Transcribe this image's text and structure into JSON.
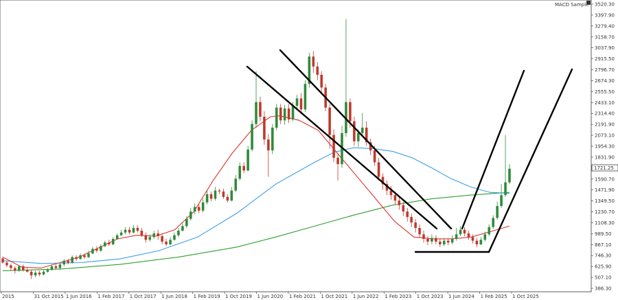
{
  "chart_data": {
    "type": "candlestick",
    "indicator_label": "MACD Sample",
    "current_price": "1721.25",
    "y_axis": {
      "range": [
        380,
        3580
      ],
      "ticks": [
        "3520.30",
        "3397.90",
        "3279.40",
        "3158.70",
        "3037.90",
        "2915.50",
        "2796.70",
        "2674.30",
        "2555.50",
        "2433.10",
        "2314.40",
        "2191.90",
        "2073.10",
        "1954.30",
        "1831.90",
        "1710.50",
        "1590.70",
        "1471.90",
        "1349.50",
        "1230.70",
        "1108.30",
        "989.50",
        "867.10",
        "746.30",
        "625.90",
        "507.10",
        "386.30"
      ]
    },
    "x_axis": {
      "labels": [
        "2015",
        "31 Oct 2015",
        "1 Jun 2016",
        "1 Feb 2017",
        "1 Oct 2017",
        "1 Jun 2018",
        "1 Feb 2019",
        "1 Oct 2019",
        "1 Jun 2020",
        "1 Feb 2021",
        "1 Oct 2021",
        "1 Jun 2022",
        "1 Feb 2023",
        "1 Oct 2023",
        "1 Jun 2024",
        "1 Feb 2025",
        "1 Oct 2025"
      ]
    },
    "candles": [
      [
        745,
        700,
        760,
        690
      ],
      [
        700,
        670,
        720,
        650
      ],
      [
        670,
        640,
        690,
        610
      ],
      [
        640,
        610,
        660,
        580
      ],
      [
        610,
        660,
        670,
        600
      ],
      [
        660,
        620,
        680,
        600
      ],
      [
        620,
        600,
        640,
        590
      ],
      [
        600,
        560,
        620,
        520
      ],
      [
        560,
        590,
        610,
        540
      ],
      [
        590,
        570,
        610,
        550
      ],
      [
        570,
        600,
        620,
        560
      ],
      [
        600,
        620,
        640,
        590
      ],
      [
        620,
        660,
        680,
        610
      ],
      [
        660,
        640,
        680,
        620
      ],
      [
        640,
        680,
        700,
        620
      ],
      [
        680,
        720,
        740,
        660
      ],
      [
        720,
        700,
        740,
        680
      ],
      [
        700,
        760,
        780,
        690
      ],
      [
        760,
        740,
        780,
        720
      ],
      [
        740,
        780,
        800,
        730
      ],
      [
        780,
        760,
        800,
        740
      ],
      [
        760,
        800,
        830,
        750
      ],
      [
        800,
        850,
        870,
        790
      ],
      [
        850,
        830,
        880,
        810
      ],
      [
        830,
        880,
        900,
        820
      ],
      [
        880,
        920,
        940,
        870
      ],
      [
        920,
        900,
        950,
        880
      ],
      [
        900,
        960,
        980,
        890
      ],
      [
        960,
        1000,
        1020,
        950
      ],
      [
        1000,
        1030,
        1060,
        990
      ],
      [
        1030,
        1060,
        1090,
        1010
      ],
      [
        1060,
        1030,
        1090,
        1010
      ],
      [
        1030,
        1080,
        1110,
        1020
      ],
      [
        1080,
        1050,
        1110,
        1030
      ],
      [
        1050,
        1000,
        1080,
        980
      ],
      [
        1000,
        950,
        1030,
        920
      ],
      [
        950,
        980,
        1010,
        930
      ],
      [
        980,
        1020,
        1050,
        960
      ],
      [
        1020,
        990,
        1060,
        950
      ],
      [
        990,
        930,
        1020,
        900
      ],
      [
        930,
        900,
        960,
        880
      ],
      [
        900,
        950,
        980,
        890
      ],
      [
        950,
        1000,
        1030,
        940
      ],
      [
        1000,
        1050,
        1080,
        980
      ],
      [
        1050,
        1100,
        1130,
        1040
      ],
      [
        1100,
        1180,
        1210,
        1080
      ],
      [
        1180,
        1260,
        1300,
        1160
      ],
      [
        1260,
        1310,
        1350,
        1230
      ],
      [
        1310,
        1270,
        1340,
        1240
      ],
      [
        1270,
        1360,
        1400,
        1250
      ],
      [
        1360,
        1450,
        1490,
        1340
      ],
      [
        1450,
        1400,
        1480,
        1370
      ],
      [
        1400,
        1490,
        1530,
        1380
      ],
      [
        1490,
        1480,
        1510,
        1450
      ],
      [
        1480,
        1420,
        1510,
        1400
      ],
      [
        1420,
        1380,
        1450,
        1360
      ],
      [
        1380,
        1490,
        1530,
        1370
      ],
      [
        1490,
        1620,
        1660,
        1470
      ],
      [
        1620,
        1760,
        1800,
        1600
      ],
      [
        1760,
        1710,
        1800,
        1680
      ],
      [
        1710,
        1940,
        1980,
        1700
      ],
      [
        1940,
        2220,
        2260,
        1920
      ],
      [
        2220,
        2460,
        2800,
        2180
      ],
      [
        2460,
        2300,
        2520,
        2250
      ],
      [
        2300,
        2050,
        2360,
        1990
      ],
      [
        2050,
        1930,
        2110,
        1640
      ],
      [
        1930,
        2180,
        2220,
        1890
      ],
      [
        2180,
        2400,
        2440,
        2150
      ],
      [
        2400,
        2260,
        2440,
        2220
      ],
      [
        2260,
        2390,
        2430,
        2210
      ],
      [
        2390,
        2270,
        2440,
        2230
      ],
      [
        2270,
        2420,
        2460,
        2250
      ],
      [
        2420,
        2500,
        2540,
        2380
      ],
      [
        2500,
        2380,
        2560,
        2330
      ],
      [
        2380,
        2660,
        2700,
        2350
      ],
      [
        2660,
        2960,
        3000,
        2620
      ],
      [
        2960,
        2850,
        3020,
        2780
      ],
      [
        2850,
        2760,
        2900,
        2700
      ],
      [
        2760,
        2620,
        2800,
        2560
      ],
      [
        2620,
        2400,
        2660,
        2360
      ],
      [
        2400,
        2100,
        2440,
        1950
      ],
      [
        2100,
        1850,
        2160,
        1800
      ],
      [
        1850,
        1780,
        1900,
        1600
      ],
      [
        1780,
        2120,
        2200,
        1740
      ],
      [
        2120,
        2460,
        3370,
        2080
      ],
      [
        2460,
        2250,
        2500,
        2180
      ],
      [
        2250,
        2030,
        2300,
        1980
      ],
      [
        2030,
        2120,
        2160,
        1970
      ],
      [
        2120,
        2180,
        2340,
        2100
      ],
      [
        2180,
        2020,
        2250,
        1980
      ],
      [
        2020,
        1930,
        2060,
        1880
      ],
      [
        1930,
        1800,
        1980,
        1760
      ],
      [
        1800,
        1640,
        1850,
        1600
      ],
      [
        1640,
        1560,
        1680,
        1500
      ],
      [
        1560,
        1490,
        1600,
        1440
      ],
      [
        1490,
        1440,
        1540,
        1390
      ],
      [
        1440,
        1380,
        1480,
        1340
      ],
      [
        1380,
        1330,
        1420,
        1280
      ],
      [
        1330,
        1260,
        1370,
        1210
      ],
      [
        1260,
        1200,
        1300,
        1150
      ],
      [
        1200,
        1140,
        1240,
        1090
      ],
      [
        1140,
        1080,
        1180,
        1030
      ],
      [
        1080,
        1010,
        1120,
        970
      ],
      [
        1010,
        960,
        1050,
        920
      ],
      [
        960,
        930,
        990,
        890
      ],
      [
        930,
        970,
        1010,
        900
      ],
      [
        970,
        930,
        1000,
        900
      ],
      [
        930,
        900,
        960,
        870
      ],
      [
        900,
        940,
        970,
        880
      ],
      [
        940,
        920,
        970,
        890
      ],
      [
        920,
        960,
        1000,
        900
      ],
      [
        960,
        1010,
        1080,
        940
      ],
      [
        1010,
        1060,
        1100,
        990
      ],
      [
        1060,
        1020,
        1090,
        990
      ],
      [
        1020,
        980,
        1050,
        950
      ],
      [
        980,
        940,
        1010,
        910
      ],
      [
        940,
        900,
        970,
        870
      ],
      [
        900,
        950,
        980,
        890
      ],
      [
        950,
        1010,
        1040,
        930
      ],
      [
        1010,
        1090,
        1120,
        990
      ],
      [
        1090,
        1190,
        1220,
        1070
      ],
      [
        1190,
        1320,
        1370,
        1170
      ],
      [
        1320,
        1440,
        1560,
        1300
      ],
      [
        1440,
        1580,
        2100,
        1420
      ],
      [
        1580,
        1730,
        1780,
        1560
      ]
    ],
    "ma_red": [
      [
        0,
        760
      ],
      [
        20,
        650
      ],
      [
        40,
        640
      ],
      [
        60,
        700
      ],
      [
        80,
        760
      ],
      [
        100,
        860
      ],
      [
        120,
        960
      ],
      [
        140,
        1000
      ],
      [
        160,
        990
      ],
      [
        180,
        1060
      ],
      [
        200,
        1260
      ],
      [
        220,
        1600
      ],
      [
        240,
        1900
      ],
      [
        260,
        2150
      ],
      [
        280,
        2300
      ],
      [
        290,
        2310
      ],
      [
        310,
        2260
      ],
      [
        330,
        2150
      ],
      [
        350,
        1900
      ],
      [
        370,
        1650
      ],
      [
        390,
        1400
      ],
      [
        410,
        1150
      ],
      [
        430,
        980
      ],
      [
        450,
        960
      ],
      [
        470,
        960
      ],
      [
        490,
        980
      ],
      [
        510,
        1040
      ],
      [
        530,
        1100
      ]
    ],
    "ma_blue": [
      [
        0,
        720
      ],
      [
        40,
        690
      ],
      [
        80,
        700
      ],
      [
        120,
        740
      ],
      [
        160,
        830
      ],
      [
        200,
        980
      ],
      [
        240,
        1240
      ],
      [
        280,
        1560
      ],
      [
        320,
        1800
      ],
      [
        340,
        1910
      ],
      [
        360,
        1960
      ],
      [
        380,
        1950
      ],
      [
        400,
        1920
      ],
      [
        420,
        1850
      ],
      [
        440,
        1740
      ],
      [
        460,
        1620
      ],
      [
        480,
        1530
      ],
      [
        500,
        1470
      ],
      [
        520,
        1460
      ]
    ],
    "ma_green": [
      [
        0,
        610
      ],
      [
        60,
        630
      ],
      [
        120,
        680
      ],
      [
        180,
        760
      ],
      [
        240,
        870
      ],
      [
        280,
        980
      ],
      [
        320,
        1100
      ],
      [
        360,
        1220
      ],
      [
        400,
        1330
      ],
      [
        440,
        1400
      ],
      [
        480,
        1440
      ],
      [
        520,
        1470
      ]
    ],
    "overlay_lines": [
      [
        [
          360,
          97
        ],
        [
          636,
          333
        ]
      ],
      [
        [
          408,
          73
        ],
        [
          657,
          333
        ]
      ],
      [
        [
          607,
          367
        ],
        [
          712,
          367
        ]
      ],
      [
        [
          607,
          367
        ],
        [
          605,
          367
        ]
      ],
      [
        [
          673,
          333
        ],
        [
          763,
          103
        ]
      ],
      [
        [
          712,
          367
        ],
        [
          833,
          101
        ]
      ]
    ]
  }
}
